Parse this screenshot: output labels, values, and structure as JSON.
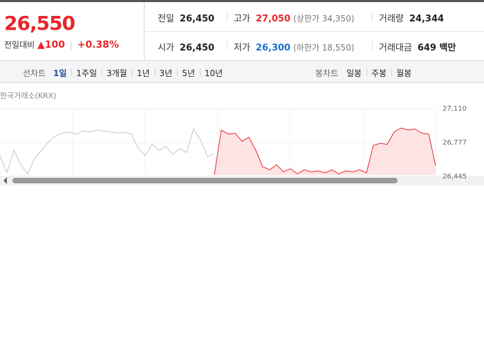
{
  "quote": {
    "price": "26,550",
    "change_label": "전일대비",
    "change": "100",
    "change_pct": "+0.38%",
    "rows": [
      [
        {
          "label": "전일",
          "value": "26,450"
        },
        {
          "label": "고가",
          "value": "27,050",
          "limit": "(상한가 34,350)"
        },
        {
          "label": "거래량",
          "value": "24,344"
        }
      ],
      [
        {
          "label": "시가",
          "value": "26,450"
        },
        {
          "label": "저가",
          "value": "26,300",
          "limit": "(하한가 18,550)"
        },
        {
          "label": "거래대금",
          "value": "649 백만"
        }
      ]
    ]
  },
  "tabs": {
    "line_label": "선차트",
    "line": [
      "1일",
      "1주일",
      "3개월",
      "1년",
      "3년",
      "5년",
      "10년"
    ],
    "active": "1일",
    "candle_label": "봉차트",
    "candle": [
      "일봉",
      "주봉",
      "월봉"
    ]
  },
  "chart_data": {
    "type": "line",
    "source": "한국거래소(KRX)",
    "ylim": [
      26445,
      27110
    ],
    "yticks": [
      {
        "value": 26445,
        "label": "26,445"
      },
      {
        "value": 26777,
        "label": "26,777"
      },
      {
        "value": 27110,
        "label": "27,110"
      }
    ],
    "grid": true,
    "series": [
      {
        "color": "#c4c4c4",
        "values": [
          26650,
          26480,
          26700,
          26560,
          26470,
          26620,
          26700,
          26780,
          26840,
          26870,
          26880,
          26860,
          26890,
          26880,
          26900,
          26890,
          26880,
          26870,
          26880,
          26860,
          26720,
          26650,
          26760,
          26700,
          26740,
          26660,
          26720,
          26680,
          26910,
          26800,
          26640,
          26670,
          null,
          null,
          null,
          null,
          null,
          null,
          null,
          null,
          null,
          null,
          null,
          null,
          null,
          null,
          null,
          null,
          null,
          null,
          null,
          null,
          null,
          null,
          null,
          null,
          null,
          null,
          null,
          null,
          null,
          null,
          null,
          null
        ]
      },
      {
        "color": "#e8262b",
        "fill": "#fde3e4",
        "values": [
          null,
          null,
          null,
          null,
          null,
          null,
          null,
          null,
          null,
          null,
          null,
          null,
          null,
          null,
          null,
          null,
          null,
          null,
          null,
          null,
          null,
          null,
          null,
          null,
          null,
          null,
          null,
          null,
          null,
          null,
          null,
          26460,
          26900,
          26860,
          26870,
          26790,
          26830,
          26700,
          26540,
          26510,
          26560,
          26490,
          26520,
          26470,
          26510,
          26490,
          26500,
          26480,
          26510,
          26470,
          26500,
          26490,
          26510,
          26480,
          26750,
          26770,
          26760,
          26880,
          26920,
          26900,
          26910,
          26870,
          26860,
          26550
        ]
      }
    ]
  }
}
